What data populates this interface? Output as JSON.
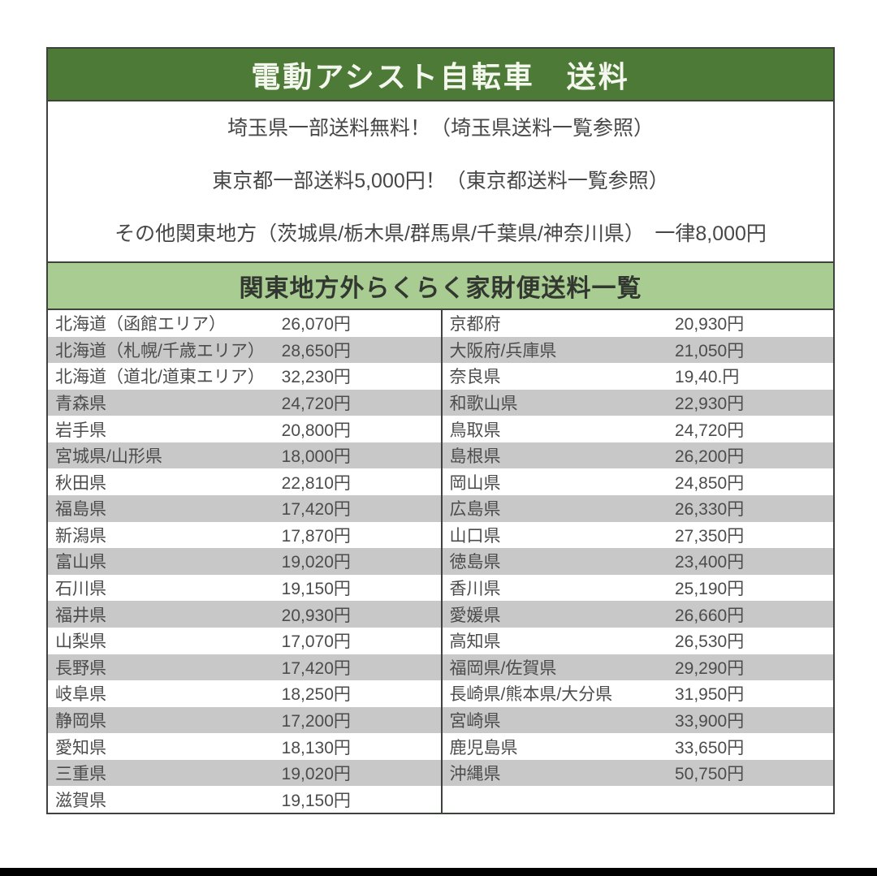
{
  "header": {
    "title": "電動アシスト自転車　送料"
  },
  "notes": {
    "saitama": "埼玉県一部送料無料！（埼玉県送料一覧参照）",
    "tokyo": "東京都一部送料5,000円！（東京都送料一覧参照）",
    "other_kanto": "その他関東地方（茨城県/栃木県/群馬県/千葉県/神奈川県）　一律8,000円"
  },
  "subheader": {
    "title": "関東地方外らくらく家財便送料一覧"
  },
  "table": {
    "left_rows": [
      {
        "region": "北海道（函館エリア）",
        "price": "26,070円"
      },
      {
        "region": "北海道（札幌/千歳エリア）",
        "price": "28,650円"
      },
      {
        "region": "北海道（道北/道東エリア）",
        "price": "32,230円"
      },
      {
        "region": "青森県",
        "price": "24,720円"
      },
      {
        "region": "岩手県",
        "price": "20,800円"
      },
      {
        "region": "宮城県/山形県",
        "price": "18,000円"
      },
      {
        "region": "秋田県",
        "price": "22,810円"
      },
      {
        "region": "福島県",
        "price": "17,420円"
      },
      {
        "region": "新潟県",
        "price": "17,870円"
      },
      {
        "region": "富山県",
        "price": "19,020円"
      },
      {
        "region": "石川県",
        "price": "19,150円"
      },
      {
        "region": "福井県",
        "price": "20,930円"
      },
      {
        "region": "山梨県",
        "price": "17,070円"
      },
      {
        "region": "長野県",
        "price": "17,420円"
      },
      {
        "region": "岐阜県",
        "price": "18,250円"
      },
      {
        "region": "静岡県",
        "price": "17,200円"
      },
      {
        "region": "愛知県",
        "price": "18,130円"
      },
      {
        "region": "三重県",
        "price": "19,020円"
      },
      {
        "region": "滋賀県",
        "price": "19,150円"
      }
    ],
    "right_rows": [
      {
        "region": "京都府",
        "price": "20,930円"
      },
      {
        "region": "大阪府/兵庫県",
        "price": "21,050円"
      },
      {
        "region": "奈良県",
        "price": "19,40.円"
      },
      {
        "region": "和歌山県",
        "price": "22,930円"
      },
      {
        "region": "鳥取県",
        "price": "24,720円"
      },
      {
        "region": "島根県",
        "price": "26,200円"
      },
      {
        "region": "岡山県",
        "price": "24,850円"
      },
      {
        "region": "広島県",
        "price": "26,330円"
      },
      {
        "region": "山口県",
        "price": "27,350円"
      },
      {
        "region": "徳島県",
        "price": "23,400円"
      },
      {
        "region": "香川県",
        "price": "25,190円"
      },
      {
        "region": "愛媛県",
        "price": "26,660円"
      },
      {
        "region": "高知県",
        "price": "26,530円"
      },
      {
        "region": "福岡県/佐賀県",
        "price": "29,290円"
      },
      {
        "region": "長崎県/熊本県/大分県",
        "price": "31,950円"
      },
      {
        "region": "宮崎県",
        "price": "33,900円"
      },
      {
        "region": "鹿児島県",
        "price": "33,650円"
      },
      {
        "region": "沖縄県",
        "price": "50,750円"
      }
    ]
  },
  "colors": {
    "header_green": "#4e7a38",
    "subheader_green": "#a9cc93",
    "row_gray": "#c8c8c8",
    "border": "#3d423d",
    "black_bar": "#000000"
  }
}
